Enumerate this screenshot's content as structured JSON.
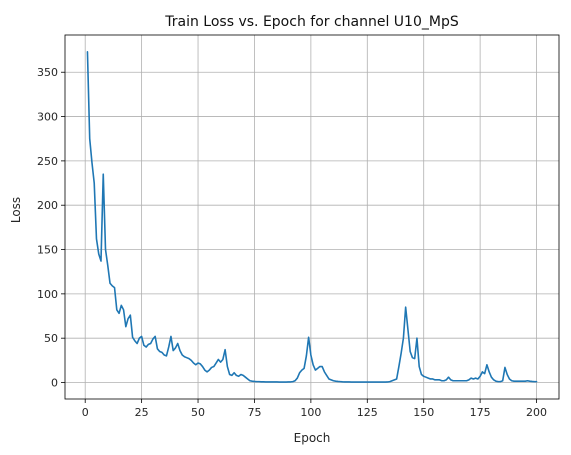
{
  "chart_data": {
    "type": "line",
    "title": "Train Loss vs. Epoch for channel U10_MpS",
    "xlabel": "Epoch",
    "ylabel": "Loss",
    "xlim": [
      -8.95,
      209.95
    ],
    "ylim": [
      -18.6,
      392.0
    ],
    "xticks": [
      0,
      25,
      50,
      75,
      100,
      125,
      150,
      175,
      200
    ],
    "yticks": [
      0,
      50,
      100,
      150,
      200,
      250,
      300,
      350
    ],
    "grid": true,
    "legend": "none",
    "series_color": "#1f77b4",
    "x": [
      1,
      2,
      3,
      4,
      5,
      6,
      7,
      8,
      9,
      10,
      11,
      12,
      13,
      14,
      15,
      16,
      17,
      18,
      19,
      20,
      21,
      22,
      23,
      24,
      25,
      26,
      27,
      28,
      29,
      30,
      31,
      32,
      33,
      34,
      35,
      36,
      37,
      38,
      39,
      40,
      41,
      42,
      43,
      44,
      45,
      46,
      47,
      48,
      49,
      50,
      51,
      52,
      53,
      54,
      55,
      56,
      57,
      58,
      59,
      60,
      61,
      62,
      63,
      64,
      65,
      66,
      67,
      68,
      69,
      70,
      71,
      72,
      73,
      74,
      75,
      76,
      77,
      78,
      79,
      80,
      81,
      82,
      83,
      84,
      85,
      86,
      87,
      88,
      89,
      90,
      91,
      92,
      93,
      94,
      95,
      96,
      97,
      98,
      99,
      100,
      101,
      102,
      103,
      104,
      105,
      106,
      107,
      108,
      109,
      110,
      111,
      112,
      113,
      114,
      115,
      116,
      117,
      118,
      119,
      120,
      121,
      122,
      123,
      124,
      125,
      126,
      127,
      128,
      129,
      130,
      131,
      132,
      133,
      134,
      135,
      136,
      137,
      138,
      139,
      140,
      141,
      142,
      143,
      144,
      145,
      146,
      147,
      148,
      149,
      150,
      151,
      152,
      153,
      154,
      155,
      156,
      157,
      158,
      159,
      160,
      161,
      162,
      163,
      164,
      165,
      166,
      167,
      168,
      169,
      170,
      171,
      172,
      173,
      174,
      175,
      176,
      177,
      178,
      179,
      180,
      181,
      182,
      183,
      184,
      185,
      186,
      187,
      188,
      189,
      190,
      191,
      192,
      193,
      194,
      195,
      196,
      197,
      198,
      199,
      200
    ],
    "values": [
      373,
      275,
      248,
      225,
      162,
      145,
      137,
      235,
      150,
      132,
      112,
      109,
      107,
      82,
      78,
      87,
      82,
      63,
      72,
      76,
      51,
      47,
      44,
      50,
      52,
      42,
      40,
      43,
      44,
      49,
      52,
      38,
      35,
      34,
      31,
      30,
      40,
      52,
      36,
      39,
      44,
      36,
      31,
      29,
      28,
      27,
      25,
      22,
      20,
      22,
      21,
      18,
      14,
      12,
      14,
      17,
      18,
      22,
      26,
      23,
      26,
      37,
      18,
      9,
      8,
      11,
      8,
      7,
      9,
      8,
      6,
      4,
      2,
      1.5,
      1.2,
      1,
      1,
      0.8,
      0.8,
      0.7,
      0.7,
      0.6,
      0.6,
      0.6,
      0.6,
      0.5,
      0.5,
      0.5,
      0.5,
      0.6,
      0.7,
      1,
      2,
      5,
      11,
      14,
      16,
      30,
      51,
      31,
      20,
      14,
      16,
      18,
      18,
      12,
      8,
      4,
      3,
      2,
      1.5,
      1.2,
      1,
      0.8,
      0.7,
      0.6,
      0.6,
      0.5,
      0.5,
      0.5,
      0.5,
      0.5,
      0.5,
      0.5,
      0.5,
      0.5,
      0.5,
      0.5,
      0.5,
      0.5,
      0.5,
      0.5,
      0.5,
      0.6,
      1,
      2,
      3,
      4,
      18,
      33,
      50,
      85,
      60,
      35,
      28,
      27,
      50,
      18,
      9,
      7,
      6,
      5,
      4,
      4,
      3,
      3,
      3,
      2,
      2,
      3,
      6,
      3,
      2,
      2,
      2,
      2,
      2,
      2,
      2,
      3,
      5,
      4,
      5,
      4,
      7,
      12,
      10,
      20,
      12,
      6,
      3,
      1.5,
      1,
      1,
      2,
      17,
      9,
      4,
      2,
      1.5,
      1.5,
      1.5,
      1.5,
      1.5,
      1.5,
      2,
      1.5,
      1.2,
      1,
      1
    ]
  }
}
